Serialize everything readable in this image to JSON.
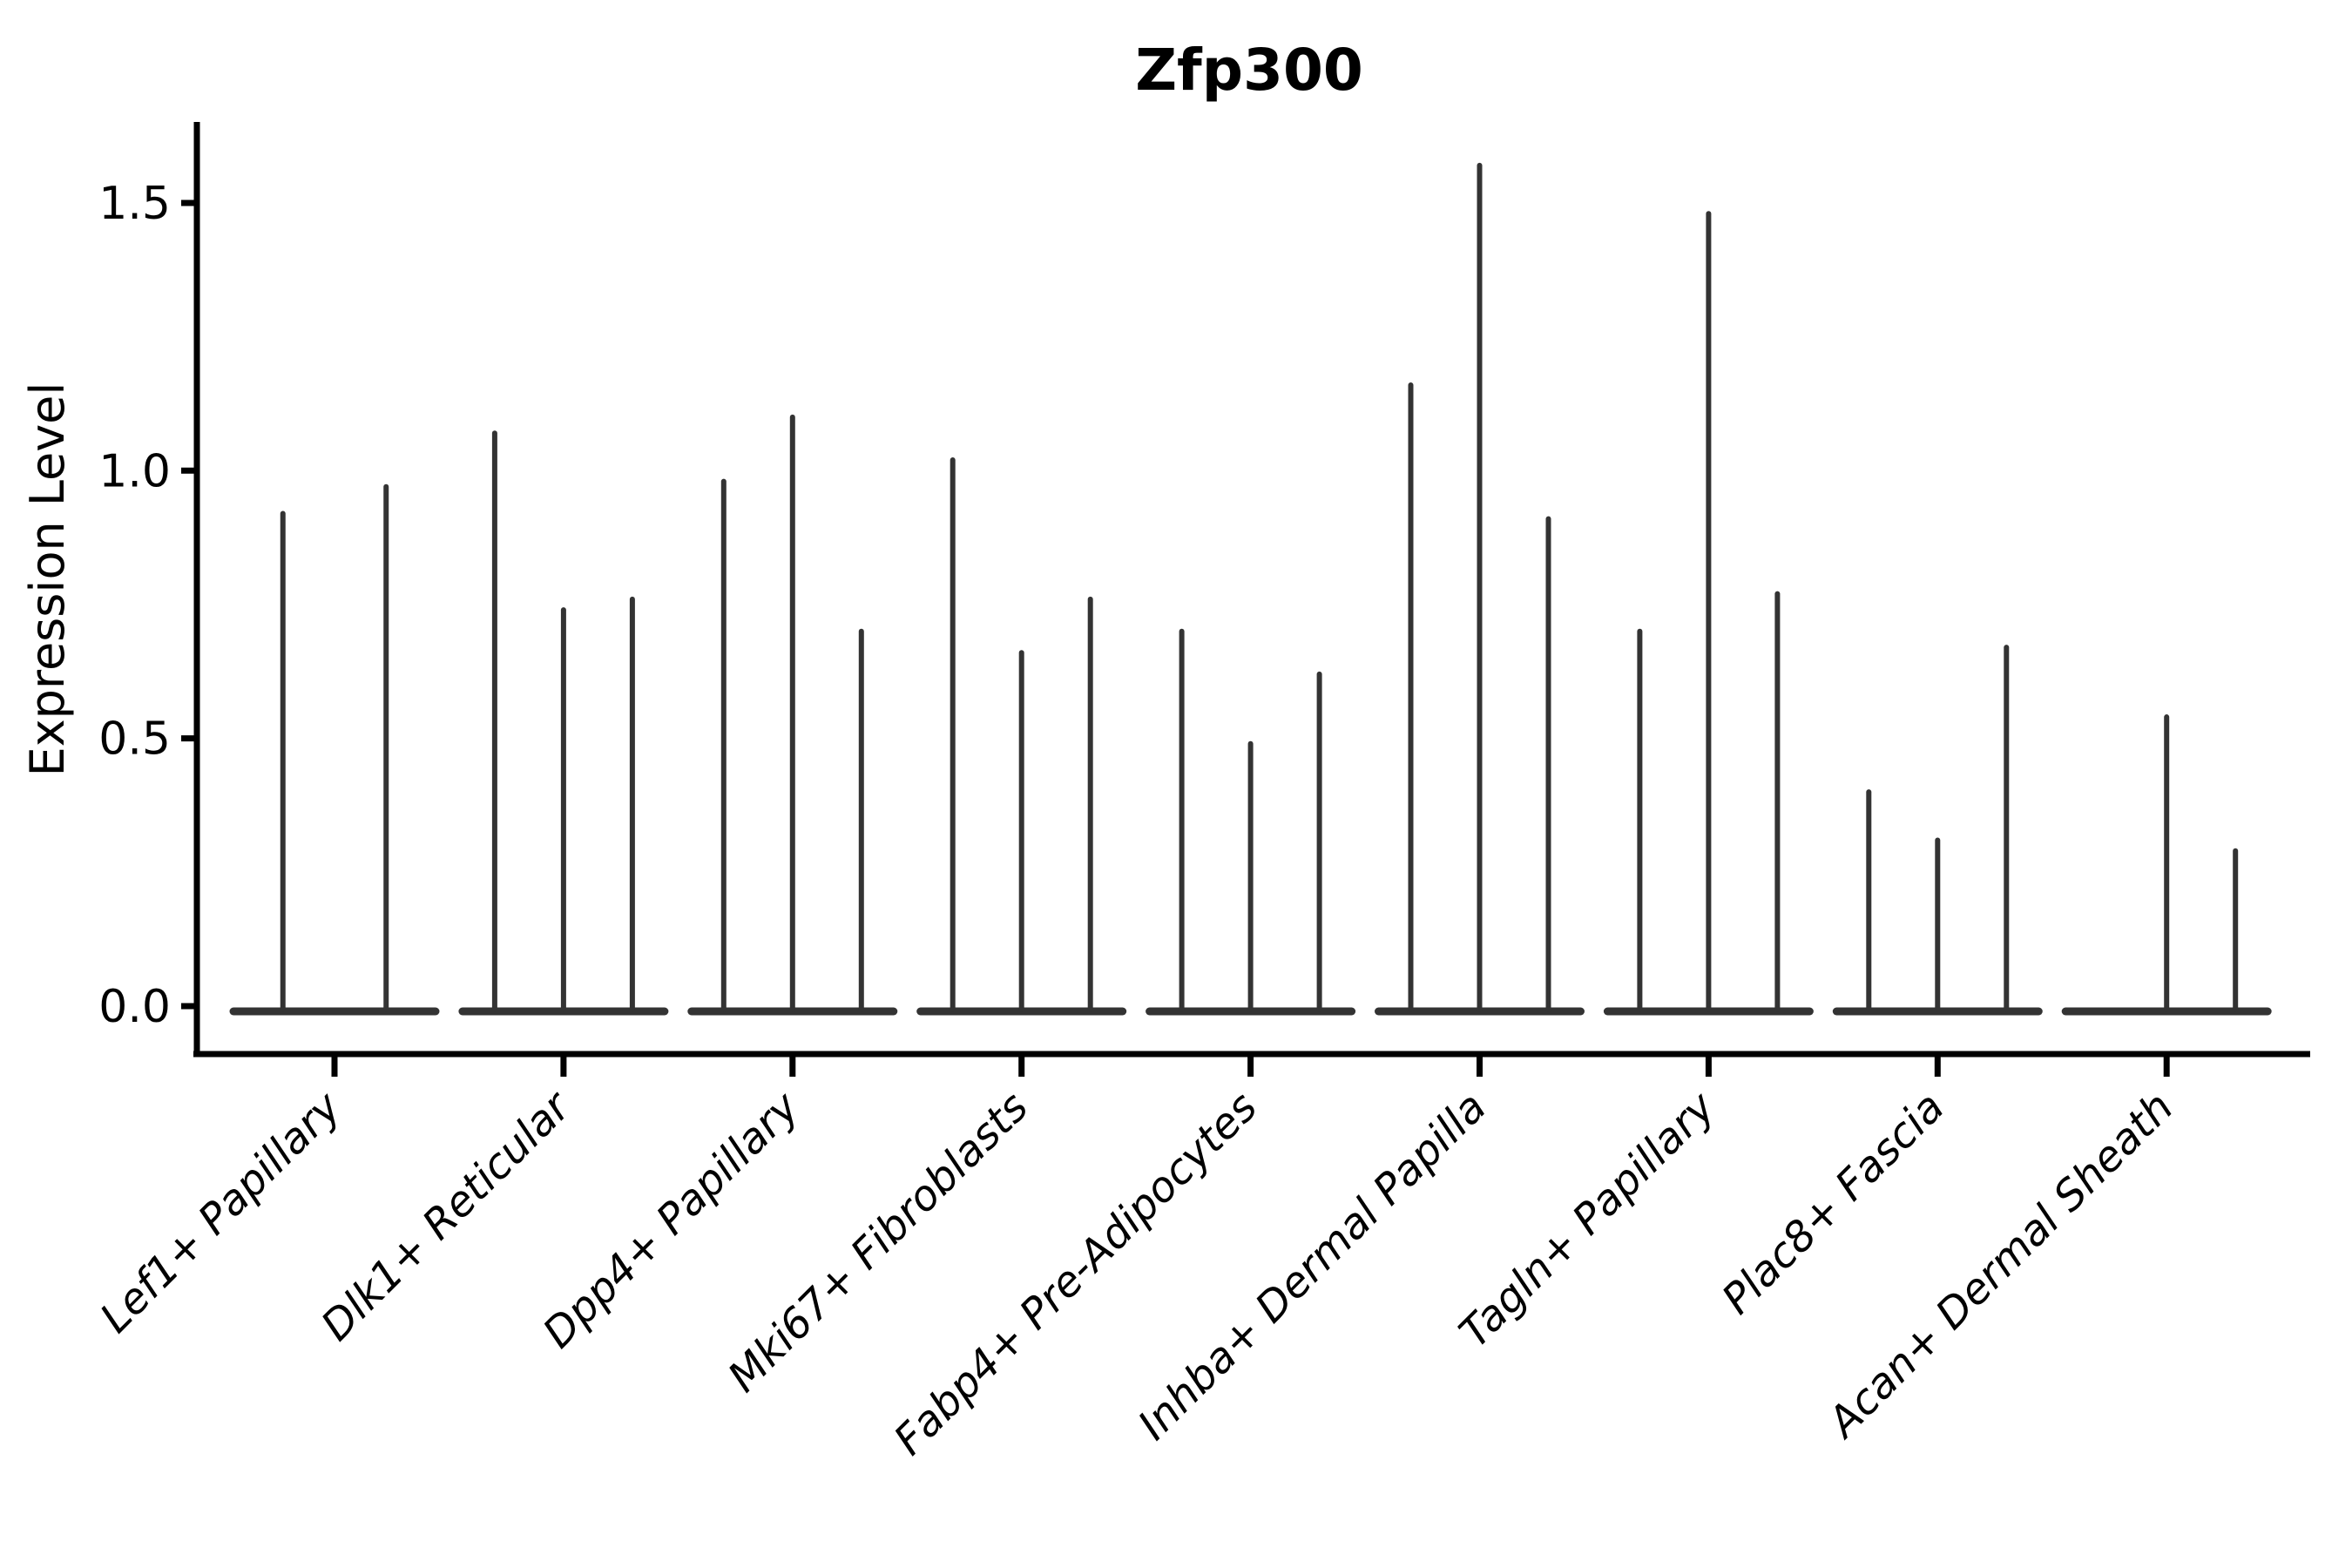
{
  "chart_data": {
    "type": "violin",
    "title": "Zfp300",
    "xlabel": "",
    "ylabel": "Expression Level",
    "ytick_labels": [
      "0.0",
      "0.5",
      "1.0",
      "1.5"
    ],
    "ytick_values": [
      0.0,
      0.5,
      1.0,
      1.5
    ],
    "ylim": [
      -0.09,
      1.65
    ],
    "grid": false,
    "legend": "none",
    "categories": [
      "Lef1+ Papillary",
      "Dlk1+ Reticular",
      "Dpp4+ Papillary",
      "Mki67+ Fibroblasts",
      "Fabp4+ Pre-Adipocytes",
      "Inhba+ Dermal Papilla",
      "Tagln+ Papillary",
      "Plac8+ Fascia",
      "Acan+ Dermal Sheath"
    ],
    "violin_max_expression": [
      [
        0.92,
        0.97
      ],
      [
        1.07,
        0.74,
        0.76
      ],
      [
        0.98,
        1.1,
        0.7
      ],
      [
        1.02,
        0.66,
        0.76
      ],
      [
        0.7,
        0.49,
        0.62
      ],
      [
        1.16,
        1.57,
        0.91
      ],
      [
        0.7,
        1.48,
        0.77
      ],
      [
        0.4,
        0.31,
        0.67
      ],
      [
        0.0,
        0.54,
        0.29
      ]
    ],
    "colors": {
      "violin": "#333333",
      "axis": "#000000",
      "text": "#000000",
      "background": "#ffffff"
    }
  }
}
